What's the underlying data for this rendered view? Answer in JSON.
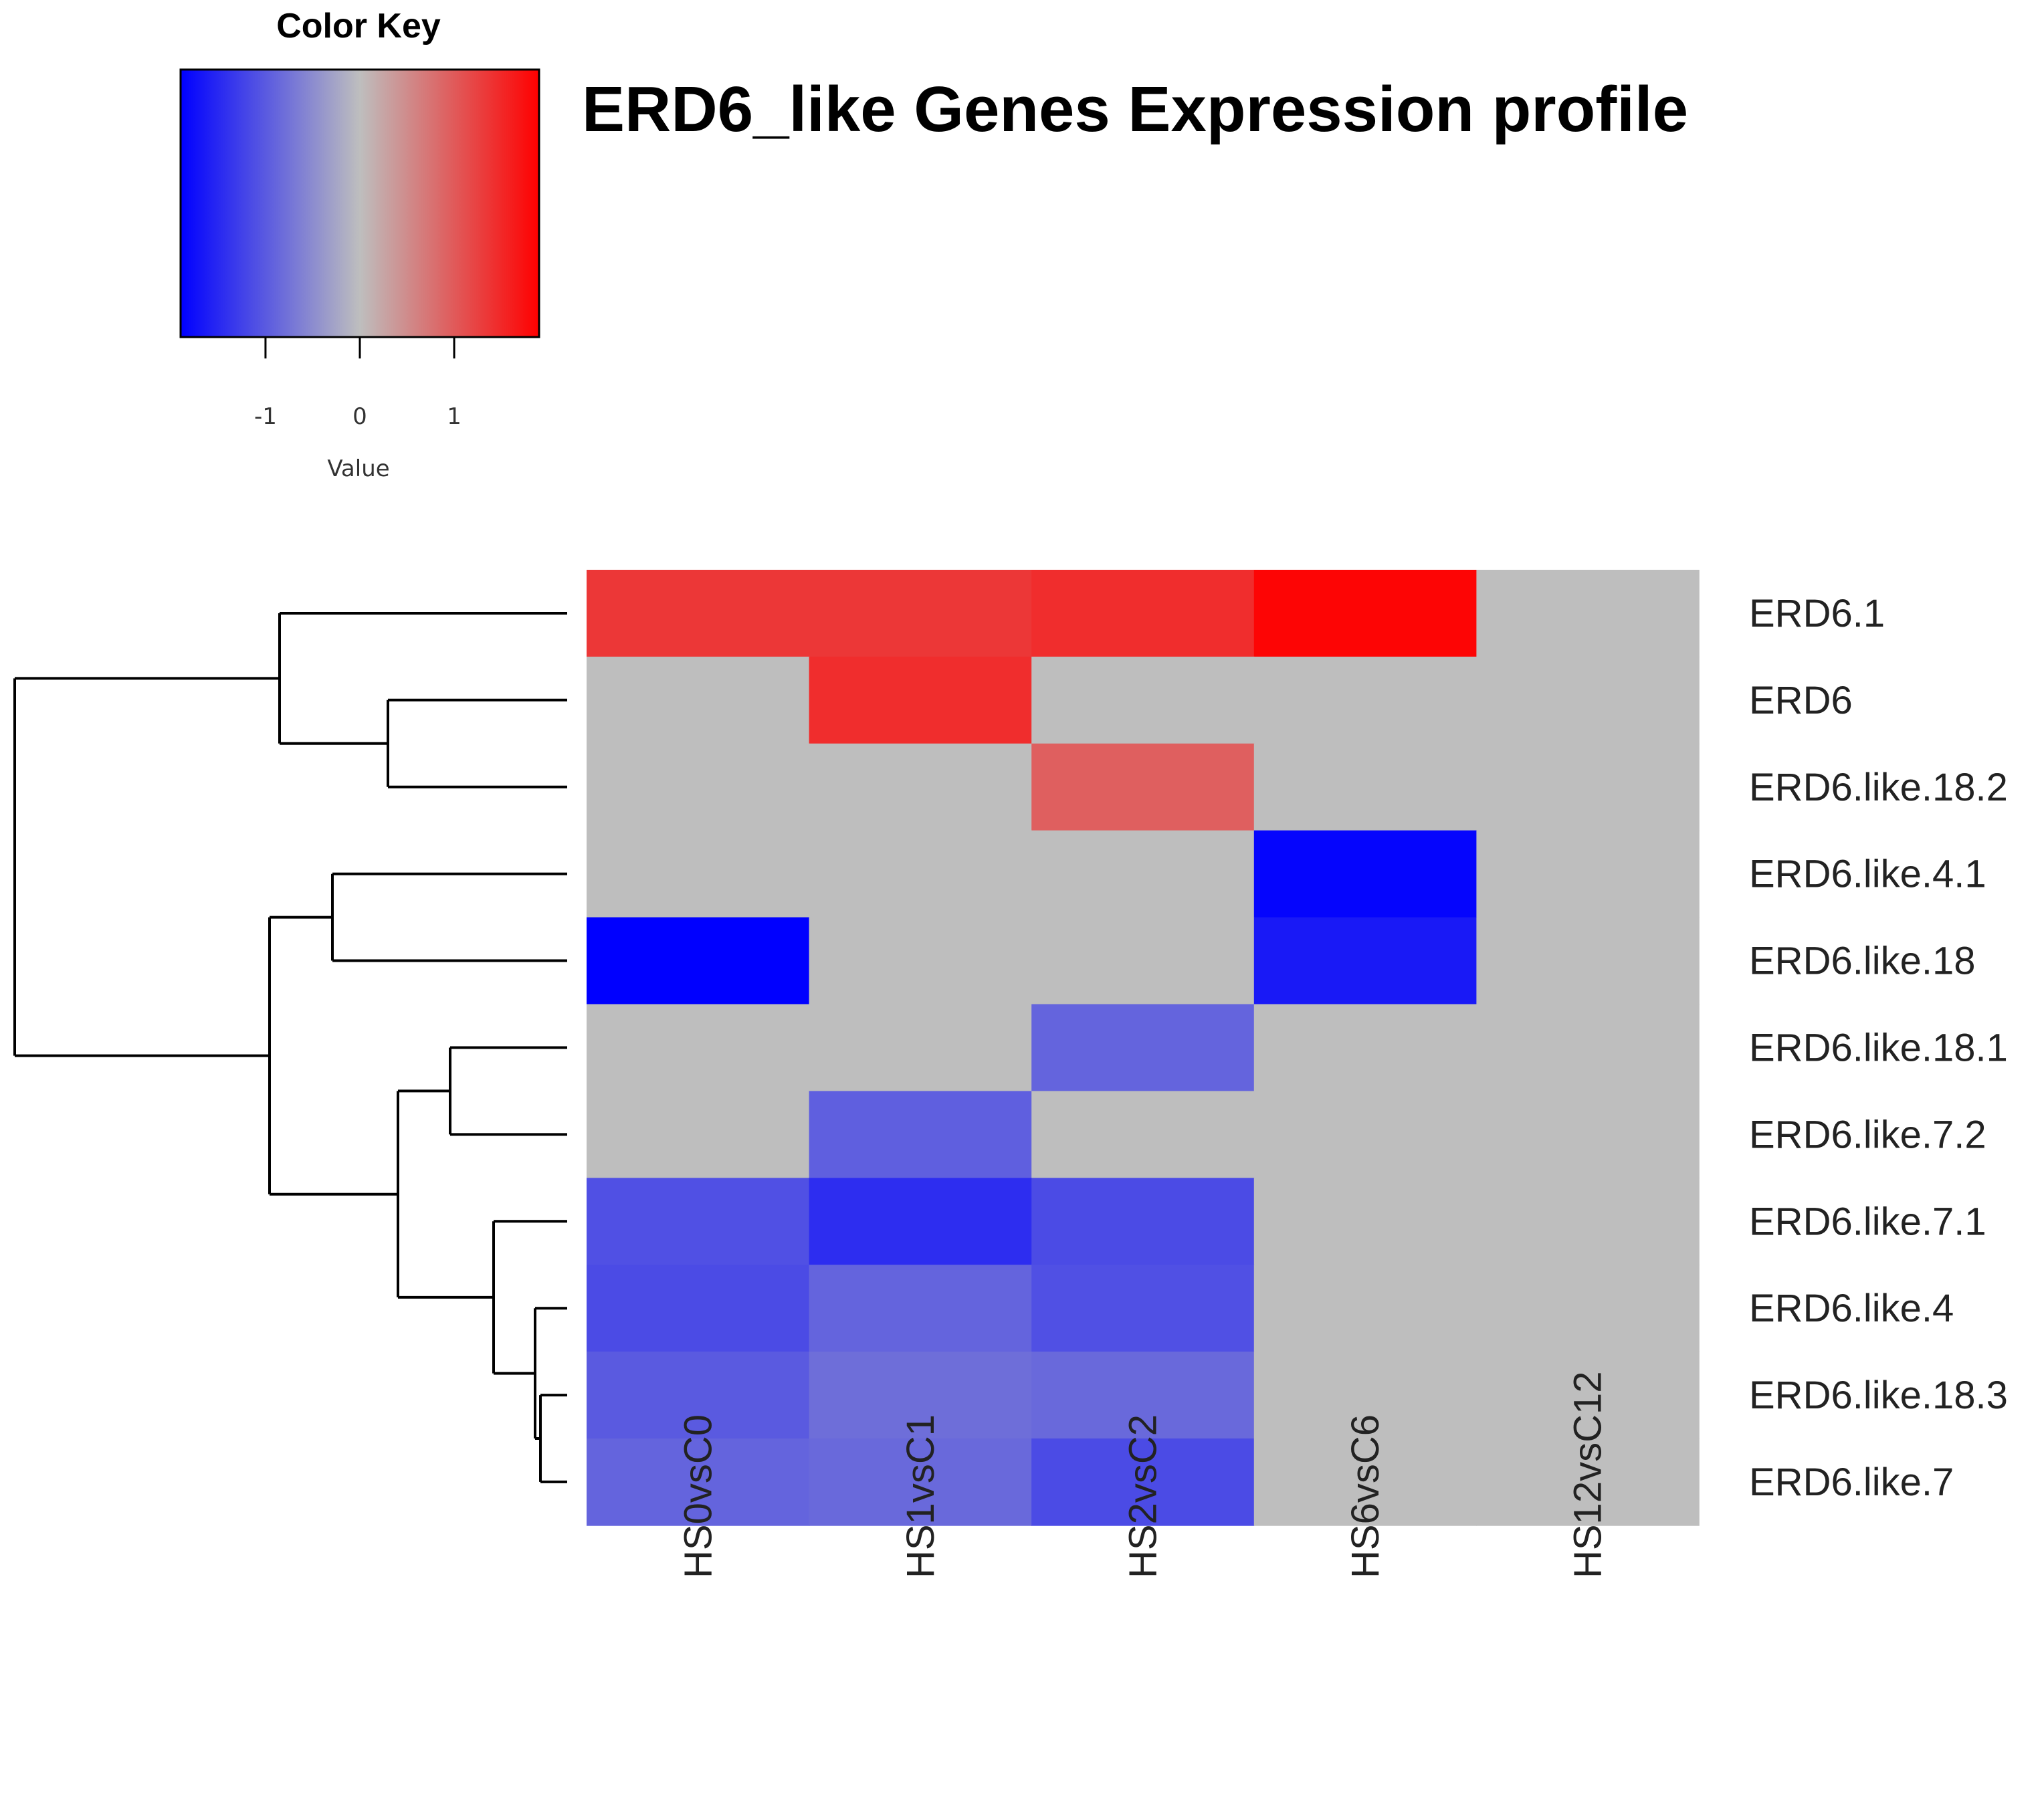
{
  "chart_data": {
    "type": "heatmap",
    "title": "ERD6_like Genes Expression profile",
    "columns": [
      "HS0vsC0",
      "HS1vsC1",
      "HS2vsC2",
      "HS6vsC6",
      "HS12vsC12"
    ],
    "rows": [
      "ERD6.1",
      "ERD6",
      "ERD6.like.18.2",
      "ERD6.like.4.1",
      "ERD6.like.18",
      "ERD6.like.18.1",
      "ERD6.like.7.2",
      "ERD6.like.7.1",
      "ERD6.like.4",
      "ERD6.like.18.3",
      "ERD6.like.7"
    ],
    "values": [
      [
        1.35,
        1.35,
        1.45,
        1.85,
        0
      ],
      [
        0,
        1.45,
        0,
        0,
        0
      ],
      [
        0,
        0,
        0.95,
        0,
        0
      ],
      [
        0,
        0,
        0,
        -1.85,
        0
      ],
      [
        -1.9,
        0,
        0,
        -1.65,
        0
      ],
      [
        0,
        0,
        -0.9,
        0,
        0
      ],
      [
        0,
        -0.95,
        0,
        0,
        0
      ],
      [
        -1.1,
        -1.45,
        -1.15,
        0,
        0
      ],
      [
        -1.15,
        -0.9,
        -1.1,
        0,
        0
      ],
      [
        -1.0,
        -0.8,
        -0.85,
        0,
        0
      ],
      [
        -0.9,
        -0.85,
        -1.15,
        0,
        0
      ]
    ],
    "color_key": {
      "title": "Color Key",
      "xlabel": "Value",
      "range": [
        -1.9,
        1.9
      ],
      "ticks": [
        -1,
        0,
        1
      ],
      "tick_labels": [
        "-1",
        "0",
        "1"
      ],
      "colors": {
        "low": "#0000ff",
        "mid": "#bebebe",
        "high": "#ff0000"
      }
    },
    "dendrogram": "rows",
    "grid": false
  }
}
